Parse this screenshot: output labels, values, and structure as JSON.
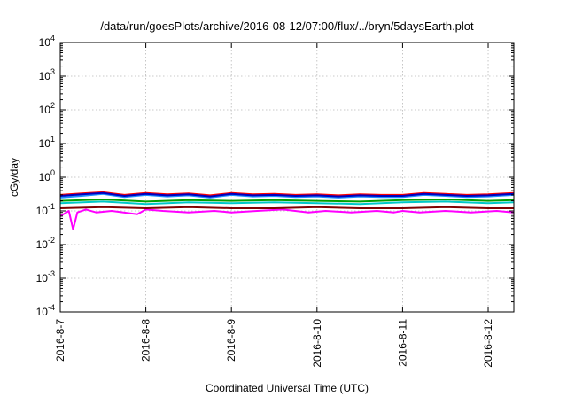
{
  "chart_data": {
    "type": "line",
    "title": "/data/run/goesPlots/archive/2016-08-12/07:00/flux/../bryn/5daysEarth.plot",
    "xlabel": "Coordinated Universal Time (UTC)",
    "ylabel": "cGy/day",
    "yscale": "log",
    "ylim": [
      0.0001,
      10000
    ],
    "xlim": [
      0,
      5.3
    ],
    "grid": true,
    "x_ticks": [
      {
        "x": 0,
        "label": "2016-8-7"
      },
      {
        "x": 1,
        "label": "2016-8-8"
      },
      {
        "x": 2,
        "label": "2016-8-9"
      },
      {
        "x": 3,
        "label": "2016-8-10"
      },
      {
        "x": 4,
        "label": "2016-8-11"
      },
      {
        "x": 5,
        "label": "2016-8-12"
      }
    ],
    "y_ticks": [
      {
        "value": 0.0001,
        "base": "10",
        "exp": "-4"
      },
      {
        "value": 0.001,
        "base": "10",
        "exp": "-3"
      },
      {
        "value": 0.01,
        "base": "10",
        "exp": "-2"
      },
      {
        "value": 0.1,
        "base": "10",
        "exp": "-1"
      },
      {
        "value": 1,
        "base": "10",
        "exp": "0"
      },
      {
        "value": 10,
        "base": "10",
        "exp": "1"
      },
      {
        "value": 100,
        "base": "10",
        "exp": "2"
      },
      {
        "value": 1000,
        "base": "10",
        "exp": "3"
      },
      {
        "value": 10000,
        "base": "10",
        "exp": "4"
      }
    ],
    "series": [
      {
        "color": "#ff00ff",
        "x": [
          0,
          0.1,
          0.15,
          0.2,
          0.3,
          0.42,
          0.6,
          0.9,
          1.0,
          1.2,
          1.5,
          1.8,
          2.0,
          2.3,
          2.6,
          2.9,
          3.1,
          3.4,
          3.7,
          3.9,
          4.0,
          4.2,
          4.5,
          4.8,
          5.1,
          5.3
        ],
        "y": [
          0.07,
          0.1,
          0.028,
          0.09,
          0.11,
          0.09,
          0.1,
          0.08,
          0.11,
          0.1,
          0.09,
          0.1,
          0.09,
          0.1,
          0.11,
          0.09,
          0.1,
          0.09,
          0.1,
          0.09,
          0.1,
          0.09,
          0.1,
          0.09,
          0.1,
          0.09
        ]
      },
      {
        "color": "#800000",
        "x": [
          0,
          0.5,
          1.0,
          1.5,
          2.0,
          2.5,
          3.0,
          3.5,
          4.0,
          4.5,
          5.0,
          5.3
        ],
        "y": [
          0.12,
          0.13,
          0.12,
          0.13,
          0.12,
          0.12,
          0.13,
          0.12,
          0.12,
          0.13,
          0.12,
          0.12
        ]
      },
      {
        "color": "#00c8c8",
        "x": [
          0,
          0.5,
          1.0,
          1.5,
          2.0,
          2.5,
          3.0,
          3.5,
          4.0,
          4.5,
          5.0,
          5.3
        ],
        "y": [
          0.17,
          0.19,
          0.16,
          0.18,
          0.17,
          0.18,
          0.17,
          0.16,
          0.18,
          0.19,
          0.17,
          0.18
        ]
      },
      {
        "color": "#00a000",
        "x": [
          0,
          0.5,
          1.0,
          1.5,
          2.0,
          2.5,
          3.0,
          3.5,
          4.0,
          4.5,
          5.0,
          5.3
        ],
        "y": [
          0.2,
          0.22,
          0.19,
          0.21,
          0.2,
          0.21,
          0.2,
          0.19,
          0.21,
          0.22,
          0.2,
          0.21
        ]
      },
      {
        "color": "#1e90ff",
        "x": [
          0,
          0.25,
          0.5,
          0.75,
          1.0,
          1.25,
          1.5,
          1.75,
          2.0,
          2.25,
          2.5,
          2.75,
          3.0,
          3.25,
          3.5,
          3.75,
          4.0,
          4.25,
          4.5,
          4.75,
          5.0,
          5.3
        ],
        "y": [
          0.25,
          0.28,
          0.32,
          0.26,
          0.3,
          0.27,
          0.29,
          0.25,
          0.3,
          0.27,
          0.28,
          0.26,
          0.27,
          0.25,
          0.27,
          0.26,
          0.26,
          0.3,
          0.28,
          0.26,
          0.27,
          0.3
        ]
      },
      {
        "color": "#ff0000",
        "x": [
          0,
          0.25,
          0.5,
          0.75,
          1.0,
          1.25,
          1.5,
          1.75,
          2.0,
          2.25,
          2.5,
          2.75,
          3.0,
          3.25,
          3.5,
          3.75,
          4.0,
          4.25,
          4.5,
          4.75,
          5.0,
          5.3
        ],
        "y": [
          0.3,
          0.33,
          0.36,
          0.3,
          0.34,
          0.31,
          0.33,
          0.29,
          0.34,
          0.31,
          0.32,
          0.3,
          0.31,
          0.29,
          0.31,
          0.3,
          0.3,
          0.34,
          0.32,
          0.3,
          0.31,
          0.34
        ]
      },
      {
        "color": "#0000c0",
        "x": [
          0,
          0.25,
          0.5,
          0.75,
          1.0,
          1.25,
          1.5,
          1.75,
          2.0,
          2.25,
          2.5,
          2.75,
          3.0,
          3.25,
          3.5,
          3.75,
          4.0,
          4.25,
          4.5,
          4.75,
          5.0,
          5.3
        ],
        "y": [
          0.28,
          0.31,
          0.34,
          0.28,
          0.32,
          0.29,
          0.31,
          0.27,
          0.32,
          0.29,
          0.3,
          0.28,
          0.29,
          0.27,
          0.29,
          0.28,
          0.28,
          0.32,
          0.3,
          0.28,
          0.29,
          0.32
        ]
      }
    ]
  }
}
